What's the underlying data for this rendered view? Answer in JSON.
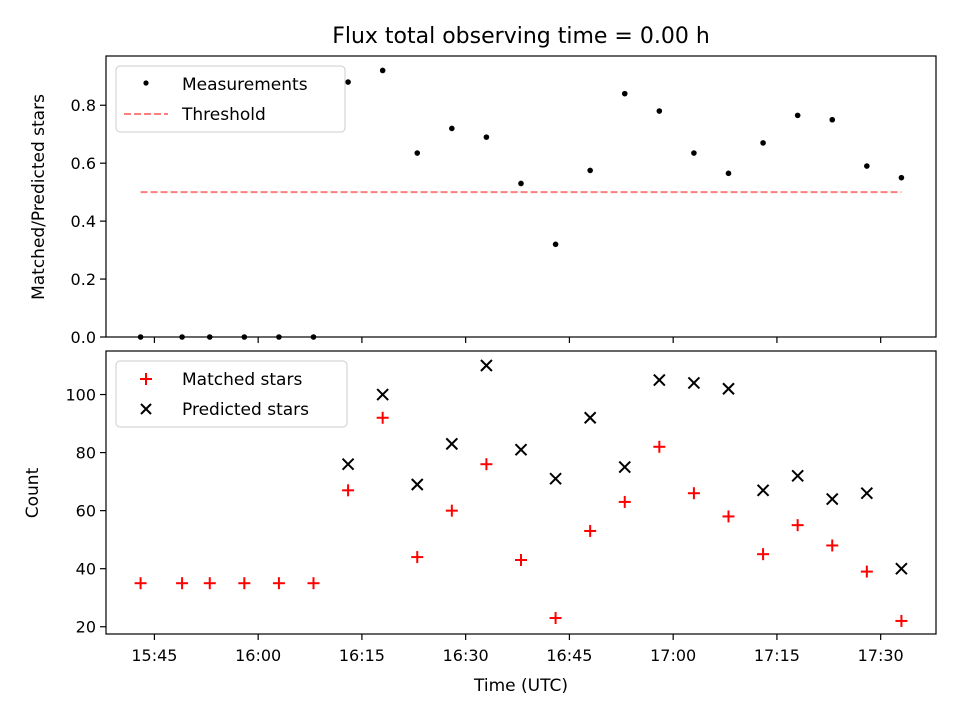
{
  "chart_data": [
    {
      "type": "scatter",
      "title": "Flux total observing time = 0.00 h",
      "ylabel": "Matched/Predicted stars",
      "xlabel": "",
      "ylim": [
        0,
        0.97
      ],
      "yticks": [
        0.0,
        0.2,
        0.4,
        0.6,
        0.8
      ],
      "ytick_labels": [
        "0.0",
        "0.2",
        "0.4",
        "0.6",
        "0.8"
      ],
      "legend": "top-left",
      "series": [
        {
          "name": "Measurements",
          "marker": "dot",
          "color": "#000000",
          "x": [
            "15:43",
            "15:49",
            "15:53",
            "15:58",
            "16:03",
            "16:08",
            "16:13",
            "16:18",
            "16:23",
            "16:28",
            "16:33",
            "16:38",
            "16:43",
            "16:48",
            "16:53",
            "16:58",
            "17:03",
            "17:08",
            "17:13",
            "17:18",
            "17:23",
            "17:28",
            "17:33"
          ],
          "y": [
            0.0,
            0.0,
            0.0,
            0.0,
            0.0,
            0.0,
            0.88,
            0.92,
            0.635,
            0.72,
            0.69,
            0.53,
            0.32,
            0.575,
            0.84,
            0.78,
            0.635,
            0.565,
            0.67,
            0.765,
            0.75,
            0.59,
            0.55
          ]
        },
        {
          "name": "Threshold",
          "marker": "dashed-line",
          "color": "#ff7f7f",
          "x": [
            "15:43",
            "17:33"
          ],
          "y": [
            0.5,
            0.5
          ]
        }
      ]
    },
    {
      "type": "scatter",
      "title": "",
      "ylabel": "Count",
      "xlabel": "Time (UTC)",
      "ylim": [
        17.5,
        115
      ],
      "yticks": [
        20,
        40,
        60,
        80,
        100
      ],
      "ytick_labels": [
        "20",
        "40",
        "60",
        "80",
        "100"
      ],
      "xlim": [
        "15:38",
        "17:38"
      ],
      "xticks": [
        "15:45",
        "16:00",
        "16:15",
        "16:30",
        "16:45",
        "17:00",
        "17:15",
        "17:30"
      ],
      "legend": "top-left",
      "series": [
        {
          "name": "Matched stars",
          "marker": "plus",
          "color": "#ff0000",
          "x": [
            "15:43",
            "15:49",
            "15:53",
            "15:58",
            "16:03",
            "16:08",
            "16:13",
            "16:18",
            "16:23",
            "16:28",
            "16:33",
            "16:38",
            "16:43",
            "16:48",
            "16:53",
            "16:58",
            "17:03",
            "17:08",
            "17:13",
            "17:18",
            "17:23",
            "17:28",
            "17:33"
          ],
          "y": [
            35,
            35,
            35,
            35,
            35,
            35,
            67,
            92,
            44,
            60,
            76,
            43,
            23,
            53,
            63,
            82,
            66,
            58,
            45,
            55,
            48,
            39,
            22
          ]
        },
        {
          "name": "Predicted stars",
          "marker": "x",
          "color": "#000000",
          "x": [
            "16:13",
            "16:18",
            "16:23",
            "16:28",
            "16:33",
            "16:38",
            "16:43",
            "16:48",
            "16:53",
            "16:58",
            "17:03",
            "17:08",
            "17:13",
            "17:18",
            "17:23",
            "17:28",
            "17:33"
          ],
          "y": [
            76,
            100,
            69,
            83,
            110,
            81,
            71,
            92,
            75,
            105,
            104,
            102,
            67,
            72,
            64,
            66,
            40
          ]
        }
      ]
    }
  ]
}
